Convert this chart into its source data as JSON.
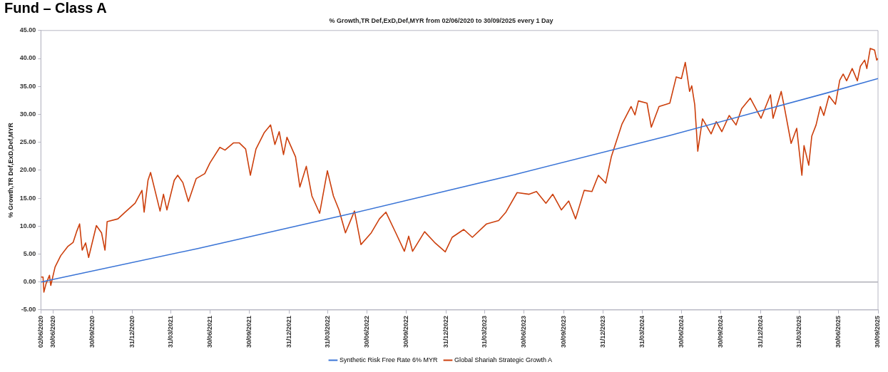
{
  "chart_data": {
    "type": "line",
    "title": "Fund – Class A",
    "subtitle": "% Growth,TR Def,ExD,Def,MYR from 02/06/2020 to 30/09/2025 every 1 Day",
    "ylabel": "% Growth,TR Def,ExD,Def,MYR",
    "xlim": [
      "2020-06-02",
      "2025-09-30"
    ],
    "xticks": [
      {
        "value": "2020-06-02",
        "label": "02/06/2020"
      },
      {
        "value": "2020-06-30",
        "label": "30/06/2020"
      },
      {
        "value": "2020-09-30",
        "label": "30/09/2020"
      },
      {
        "value": "2020-12-31",
        "label": "31/12/2020"
      },
      {
        "value": "2021-03-31",
        "label": "31/03/2021"
      },
      {
        "value": "2021-06-30",
        "label": "30/06/2021"
      },
      {
        "value": "2021-09-30",
        "label": "30/09/2021"
      },
      {
        "value": "2021-12-31",
        "label": "31/12/2021"
      },
      {
        "value": "2022-03-31",
        "label": "31/03/2022"
      },
      {
        "value": "2022-06-30",
        "label": "30/06/2022"
      },
      {
        "value": "2022-09-30",
        "label": "30/09/2022"
      },
      {
        "value": "2022-12-31",
        "label": "31/12/2022"
      },
      {
        "value": "2023-03-31",
        "label": "31/03/2023"
      },
      {
        "value": "2023-06-30",
        "label": "30/06/2023"
      },
      {
        "value": "2023-09-30",
        "label": "30/09/2023"
      },
      {
        "value": "2023-12-31",
        "label": "31/12/2023"
      },
      {
        "value": "2024-03-31",
        "label": "31/03/2024"
      },
      {
        "value": "2024-06-30",
        "label": "30/06/2024"
      },
      {
        "value": "2024-09-30",
        "label": "30/09/2024"
      },
      {
        "value": "2024-12-31",
        "label": "31/12/2024"
      },
      {
        "value": "2025-03-31",
        "label": "31/03/2025"
      },
      {
        "value": "2025-06-30",
        "label": "30/06/2025"
      },
      {
        "value": "2025-09-30",
        "label": "30/09/2025"
      }
    ],
    "ylim": [
      -5,
      45
    ],
    "yticks": [
      {
        "value": -5,
        "label": "-5.00"
      },
      {
        "value": 0,
        "label": "0.00"
      },
      {
        "value": 5,
        "label": "5.00"
      },
      {
        "value": 10,
        "label": "10.00"
      },
      {
        "value": 15,
        "label": "15.00"
      },
      {
        "value": 20,
        "label": "20.00"
      },
      {
        "value": 25,
        "label": "25.00"
      },
      {
        "value": 30,
        "label": "30.00"
      },
      {
        "value": 35,
        "label": "35.00"
      },
      {
        "value": 40,
        "label": "40.00"
      },
      {
        "value": 45,
        "label": "45.00"
      }
    ],
    "grid": false,
    "legend": "bottom",
    "marker": "none",
    "line_style": "solid",
    "ref_lines": [
      {
        "axis": "y",
        "value": 0,
        "color": "#b0b0b8"
      }
    ],
    "series": [
      {
        "name": "Synthetic Risk Free Rate 6% MYR",
        "color": "#3a74d6",
        "x": [
          "2020-06-02",
          "2021-06-02",
          "2022-06-02",
          "2023-06-02",
          "2024-06-02",
          "2025-06-02",
          "2025-09-30"
        ],
        "values": [
          0,
          6,
          12.4,
          19.1,
          26.2,
          33.8,
          36.4
        ]
      },
      {
        "name": "Global Shariah Strategic Growth A",
        "color": "#cc3f0c",
        "x": [
          "2020-06-02",
          "2020-06-07",
          "2020-06-09",
          "2020-06-14",
          "2020-06-22",
          "2020-06-25",
          "2020-07-05",
          "2020-07-18",
          "2020-08-04",
          "2020-08-16",
          "2020-08-24",
          "2020-08-31",
          "2020-09-06",
          "2020-09-14",
          "2020-09-21",
          "2020-10-09",
          "2020-10-21",
          "2020-10-29",
          "2020-11-03",
          "2020-11-28",
          "2020-12-15",
          "2021-01-07",
          "2021-01-23",
          "2021-01-28",
          "2021-02-06",
          "2021-02-12",
          "2021-03-06",
          "2021-03-14",
          "2021-03-22",
          "2021-04-08",
          "2021-04-16",
          "2021-04-28",
          "2021-05-11",
          "2021-05-29",
          "2021-06-18",
          "2021-06-30",
          "2021-07-23",
          "2021-08-04",
          "2021-08-24",
          "2021-09-06",
          "2021-09-21",
          "2021-10-02",
          "2021-10-15",
          "2021-11-03",
          "2021-11-18",
          "2021-11-28",
          "2021-12-08",
          "2021-12-18",
          "2021-12-26",
          "2022-01-15",
          "2022-01-25",
          "2022-02-09",
          "2022-02-22",
          "2022-03-12",
          "2022-03-30",
          "2022-04-13",
          "2022-04-26",
          "2022-05-11",
          "2022-06-01",
          "2022-06-16",
          "2022-07-10",
          "2022-07-29",
          "2022-08-13",
          "2022-09-05",
          "2022-09-25",
          "2022-10-05",
          "2022-10-14",
          "2022-11-11",
          "2022-12-04",
          "2022-12-29",
          "2023-01-14",
          "2023-02-10",
          "2023-03-02",
          "2023-04-04",
          "2023-05-02",
          "2023-05-19",
          "2023-06-14",
          "2023-07-12",
          "2023-07-29",
          "2023-08-20",
          "2023-09-05",
          "2023-09-25",
          "2023-10-12",
          "2023-10-28",
          "2023-11-17",
          "2023-12-05",
          "2023-12-20",
          "2024-01-06",
          "2024-01-19",
          "2024-02-13",
          "2024-03-05",
          "2024-03-14",
          "2024-03-22",
          "2024-04-11",
          "2024-04-21",
          "2024-05-09",
          "2024-06-03",
          "2024-06-18",
          "2024-06-30",
          "2024-07-09",
          "2024-07-19",
          "2024-07-24",
          "2024-07-31",
          "2024-08-07",
          "2024-08-18",
          "2024-09-07",
          "2024-09-19",
          "2024-10-02",
          "2024-10-19",
          "2024-11-04",
          "2024-11-17",
          "2024-12-07",
          "2025-01-01",
          "2025-01-23",
          "2025-01-29",
          "2025-02-17",
          "2025-02-25",
          "2025-03-12",
          "2025-03-25",
          "2025-04-06",
          "2025-04-11",
          "2025-04-22",
          "2025-04-29",
          "2025-05-09",
          "2025-05-19",
          "2025-05-27",
          "2025-06-08",
          "2025-06-23",
          "2025-07-03",
          "2025-07-11",
          "2025-07-19",
          "2025-08-01",
          "2025-08-13",
          "2025-08-20",
          "2025-08-30",
          "2025-09-04",
          "2025-09-12",
          "2025-09-22",
          "2025-09-27",
          "2025-09-30"
        ],
        "values": [
          0.9,
          0.9,
          -1.8,
          -0.3,
          1.2,
          -0.6,
          2.7,
          4.7,
          6.4,
          7.1,
          9.0,
          10.4,
          5.7,
          7.0,
          4.4,
          10.1,
          8.8,
          5.7,
          10.8,
          11.3,
          12.5,
          14.1,
          16.4,
          12.5,
          18.2,
          19.6,
          12.7,
          15.7,
          12.9,
          18.2,
          19.1,
          17.8,
          14.4,
          18.5,
          19.4,
          21.3,
          24.1,
          23.6,
          24.9,
          24.9,
          23.8,
          19.1,
          23.8,
          26.7,
          28.1,
          24.6,
          26.9,
          22.8,
          25.9,
          22.4,
          17.0,
          20.7,
          15.4,
          12.3,
          19.9,
          15.4,
          12.9,
          8.8,
          12.7,
          6.7,
          8.8,
          11.3,
          12.5,
          8.8,
          5.5,
          8.2,
          5.5,
          9.0,
          7.1,
          5.4,
          8.0,
          9.4,
          8.0,
          10.4,
          11.0,
          12.5,
          16.0,
          15.7,
          16.2,
          14.1,
          15.7,
          12.9,
          14.5,
          11.3,
          16.4,
          16.2,
          19.1,
          17.7,
          22.4,
          28.3,
          31.4,
          29.9,
          32.4,
          32.0,
          27.7,
          31.4,
          32.0,
          36.7,
          36.4,
          39.3,
          34.1,
          35.1,
          31.7,
          23.4,
          29.2,
          26.5,
          28.7,
          26.9,
          29.8,
          28.1,
          31.0,
          32.9,
          29.3,
          33.5,
          29.3,
          34.1,
          31.0,
          24.8,
          27.5,
          19.1,
          24.4,
          20.9,
          26.1,
          28.1,
          31.4,
          29.8,
          33.3,
          31.8,
          36.1,
          37.2,
          36.0,
          38.2,
          36.0,
          38.6,
          39.7,
          38.2,
          41.8,
          41.5,
          39.7,
          40.0
        ]
      }
    ]
  }
}
